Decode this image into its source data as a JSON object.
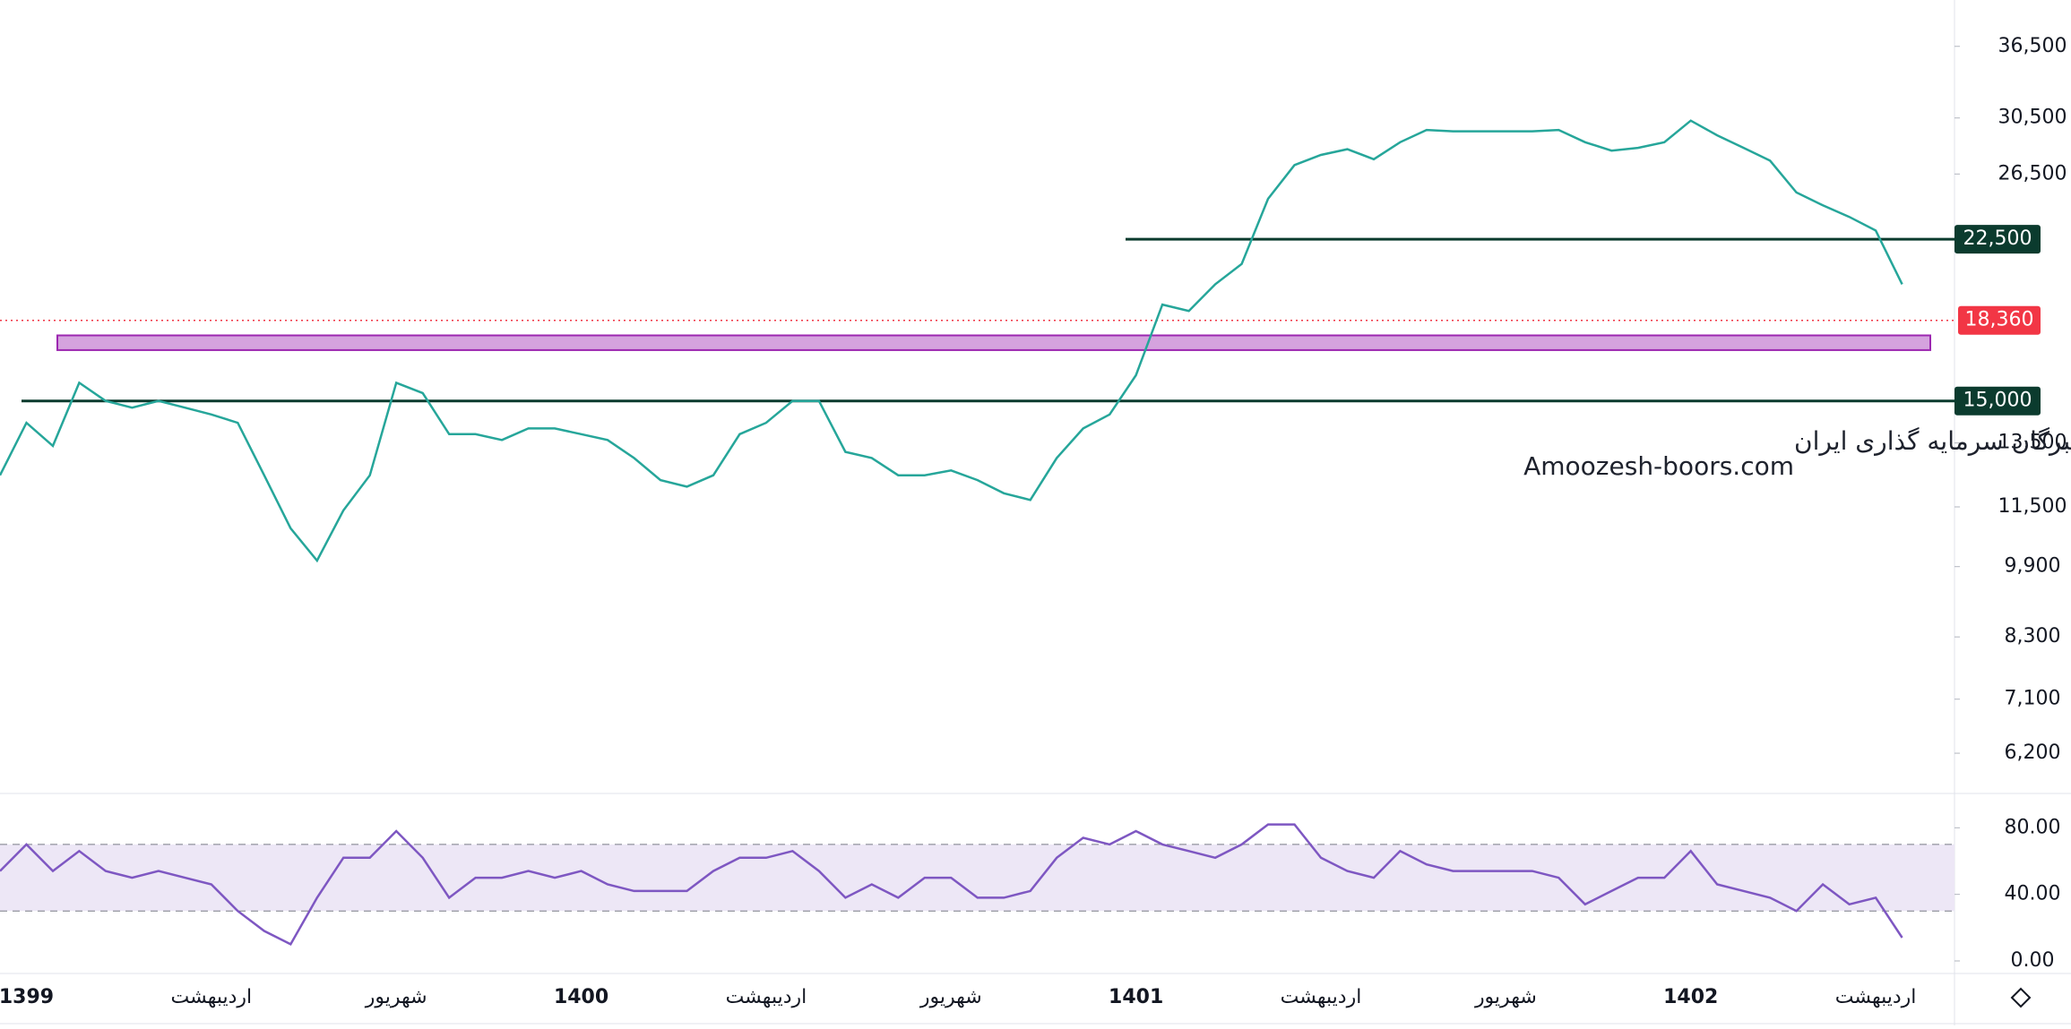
{
  "chart_data": [
    {
      "type": "line",
      "log_scale": true,
      "color": "#26a69a",
      "categories": [
        null,
        "1399",
        null,
        null,
        null,
        null,
        null,
        null,
        "اردیبهشت",
        null,
        null,
        null,
        null,
        null,
        null,
        "شهریور",
        null,
        null,
        null,
        null,
        null,
        null,
        "1400",
        null,
        null,
        null,
        null,
        null,
        null,
        "اردیبهشت",
        null,
        null,
        null,
        null,
        null,
        null,
        "شهریور",
        null,
        null,
        null,
        null,
        null,
        null,
        "1401",
        null,
        null,
        null,
        null,
        null,
        null,
        "اردیبهشت",
        null,
        null,
        null,
        null,
        null,
        null,
        "شهریور",
        null,
        null,
        null,
        null,
        null,
        null,
        "1402",
        null,
        null,
        null,
        null,
        null,
        null,
        "اردیبهشت",
        null
      ],
      "values": [
        12450,
        14200,
        13400,
        15700,
        15000,
        14750,
        15000,
        14750,
        14500,
        14200,
        12450,
        10900,
        10050,
        11400,
        12450,
        15700,
        15300,
        13800,
        13800,
        13600,
        14000,
        14000,
        13800,
        13600,
        13000,
        12300,
        12100,
        12450,
        13800,
        14200,
        15000,
        15000,
        13200,
        13000,
        12450,
        12450,
        12600,
        12300,
        11900,
        11700,
        13000,
        14000,
        14500,
        16000,
        19100,
        18800,
        20100,
        21150,
        24900,
        27100,
        27800,
        28200,
        27500,
        28700,
        29600,
        29500,
        29500,
        29500,
        29500,
        29600,
        28700,
        28100,
        28300,
        28700,
        30300,
        29200,
        28300,
        27400,
        25300,
        24500,
        23800,
        23000,
        20100
      ],
      "ylim": [
        5630,
        41000
      ],
      "yticks": [
        {
          "value": 36500,
          "label": "36,500"
        },
        {
          "value": 30500,
          "label": "30,500"
        },
        {
          "value": 26500,
          "label": "26,500"
        },
        {
          "value": 13500,
          "label": "13,500"
        },
        {
          "value": 11500,
          "label": "11,500"
        },
        {
          "value": 9900,
          "label": "9,900"
        },
        {
          "value": 8300,
          "label": "8,300"
        },
        {
          "value": 7100,
          "label": "7,100"
        },
        {
          "value": 6200,
          "label": "6,200"
        }
      ],
      "levels": [
        {
          "value": 22500,
          "label": "22,500"
        },
        {
          "value": 15000,
          "label": "15,000"
        }
      ],
      "level_color": "#0b3b2e",
      "last_price": {
        "value": 18360,
        "label": "18,360"
      },
      "last_color": "#f23645",
      "zone": [
        17040,
        17680
      ],
      "zone_color": "#ce93d8",
      "annotations": [
        "انجمن خبرگان سرمایه گذاری ایران",
        "Amoozesh-boors.com"
      ]
    },
    {
      "type": "line",
      "color": "#7e57c2",
      "values": [
        54,
        70,
        54,
        66,
        54,
        50,
        54,
        50,
        46,
        30,
        18,
        10,
        38,
        62,
        62,
        78,
        62,
        38,
        50,
        50,
        54,
        50,
        54,
        46,
        42,
        42,
        42,
        54,
        62,
        62,
        66,
        54,
        38,
        46,
        38,
        50,
        50,
        38,
        38,
        42,
        62,
        74,
        70,
        78,
        70,
        66,
        62,
        70,
        82,
        82,
        62,
        54,
        50,
        66,
        58,
        54,
        54,
        54,
        54,
        50,
        34,
        42,
        50,
        50,
        66,
        46,
        42,
        38,
        30,
        46,
        34,
        38,
        14
      ],
      "ylim": [
        -7,
        99
      ],
      "yticks": [
        {
          "value": 80,
          "label": "80.00"
        },
        {
          "value": 40,
          "label": "40.00"
        },
        {
          "value": 0,
          "label": "0.00"
        }
      ],
      "band": [
        30,
        70
      ],
      "band_color": "#ede7f6"
    }
  ]
}
